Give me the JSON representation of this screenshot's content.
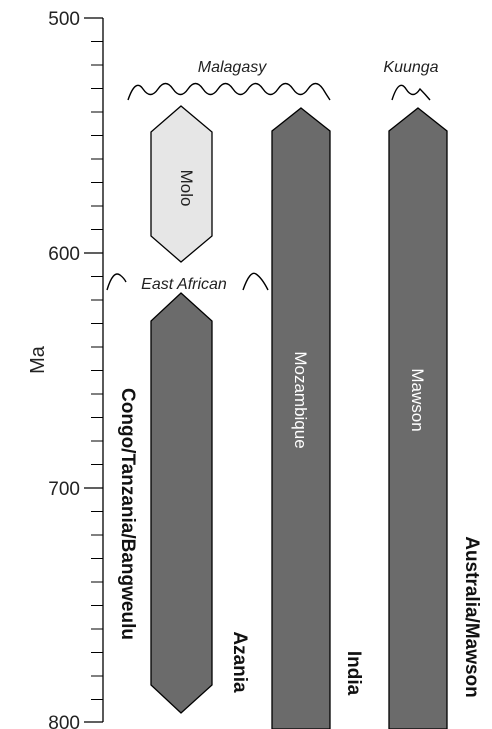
{
  "axis": {
    "title": "Ma",
    "ticks": [
      "500",
      "600",
      "700",
      "800"
    ]
  },
  "events": {
    "malagasy": "Malagasy",
    "kuunga": "Kuunga",
    "east_african": "East African"
  },
  "bars": {
    "molo": "Molo",
    "mozambique": "Mozambique",
    "mawson": "Mawson"
  },
  "regions": {
    "congo": "Congo/Tanzania/Bangweulu",
    "azania": "Azania",
    "india": "India",
    "australia": "Australia/Mawson"
  },
  "colors": {
    "dark_bar": "#6b6b6b",
    "light_bar": "#e6e6e6",
    "stroke": "#000000"
  }
}
